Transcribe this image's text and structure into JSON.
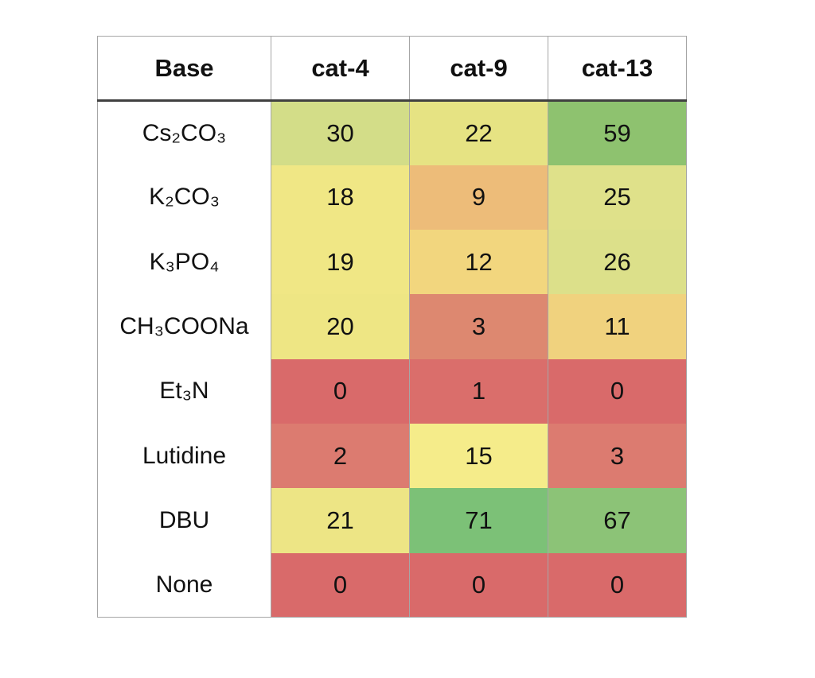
{
  "table": {
    "header": {
      "base": "Base",
      "cols": [
        "cat-4",
        "cat-9",
        "cat-13"
      ]
    },
    "rows": [
      {
        "base": "Cs₂CO₃",
        "cells": [
          {
            "v": "30",
            "bg": "#d3dd88"
          },
          {
            "v": "22",
            "bg": "#e6e383"
          },
          {
            "v": "59",
            "bg": "#8ec26f"
          }
        ]
      },
      {
        "base": "K₂CO₃",
        "cells": [
          {
            "v": "18",
            "bg": "#f0e785"
          },
          {
            "v": "9",
            "bg": "#edbc79"
          },
          {
            "v": "25",
            "bg": "#dfe18a"
          }
        ]
      },
      {
        "base": "K₃PO₄",
        "cells": [
          {
            "v": "19",
            "bg": "#f0e785"
          },
          {
            "v": "12",
            "bg": "#f2d67e"
          },
          {
            "v": "26",
            "bg": "#dce08a"
          }
        ]
      },
      {
        "base": "CH₃COONa",
        "cells": [
          {
            "v": "20",
            "bg": "#eee684"
          },
          {
            "v": "3",
            "bg": "#dd8870"
          },
          {
            "v": "11",
            "bg": "#f0d27e"
          }
        ]
      },
      {
        "base": "Et₃N",
        "cells": [
          {
            "v": "0",
            "bg": "#d96a6a"
          },
          {
            "v": "1",
            "bg": "#da6e6b"
          },
          {
            "v": "0",
            "bg": "#d96a6a"
          }
        ]
      },
      {
        "base": "Lutidine",
        "cells": [
          {
            "v": "2",
            "bg": "#dc7b70"
          },
          {
            "v": "15",
            "bg": "#f5ec8a"
          },
          {
            "v": "3",
            "bg": "#dc7b70"
          }
        ]
      },
      {
        "base": "DBU",
        "cells": [
          {
            "v": "21",
            "bg": "#ede585"
          },
          {
            "v": "71",
            "bg": "#7cc177"
          },
          {
            "v": "67",
            "bg": "#8cc377"
          }
        ]
      },
      {
        "base": "None",
        "cells": [
          {
            "v": "0",
            "bg": "#d96a6a"
          },
          {
            "v": "0",
            "bg": "#d96a6a"
          },
          {
            "v": "0",
            "bg": "#d96a6a"
          }
        ]
      }
    ],
    "border_colors": {
      "grid": "#a6a6a6",
      "header_underline": "#404040"
    }
  },
  "chart_data": {
    "type": "heatmap",
    "title": "",
    "row_header_label": "Base",
    "rows": [
      "Cs₂CO₃",
      "K₂CO₃",
      "K₃PO₄",
      "CH₃COONa",
      "Et₃N",
      "Lutidine",
      "DBU",
      "None"
    ],
    "columns": [
      "cat-4",
      "cat-9",
      "cat-13"
    ],
    "values": [
      [
        30,
        22,
        59
      ],
      [
        18,
        9,
        25
      ],
      [
        19,
        12,
        26
      ],
      [
        20,
        3,
        11
      ],
      [
        0,
        1,
        0
      ],
      [
        2,
        15,
        3
      ],
      [
        21,
        71,
        67
      ],
      [
        0,
        0,
        0
      ]
    ],
    "value_range": [
      0,
      71
    ],
    "color_scale": {
      "low": "#d96a6a",
      "mid": "#f5ec8a",
      "high": "#7cc177",
      "description": "red-yellow-green increasing with value"
    },
    "layout": {
      "grid": "thin gray column separators",
      "header_underline": "thick dark line below header row"
    }
  }
}
